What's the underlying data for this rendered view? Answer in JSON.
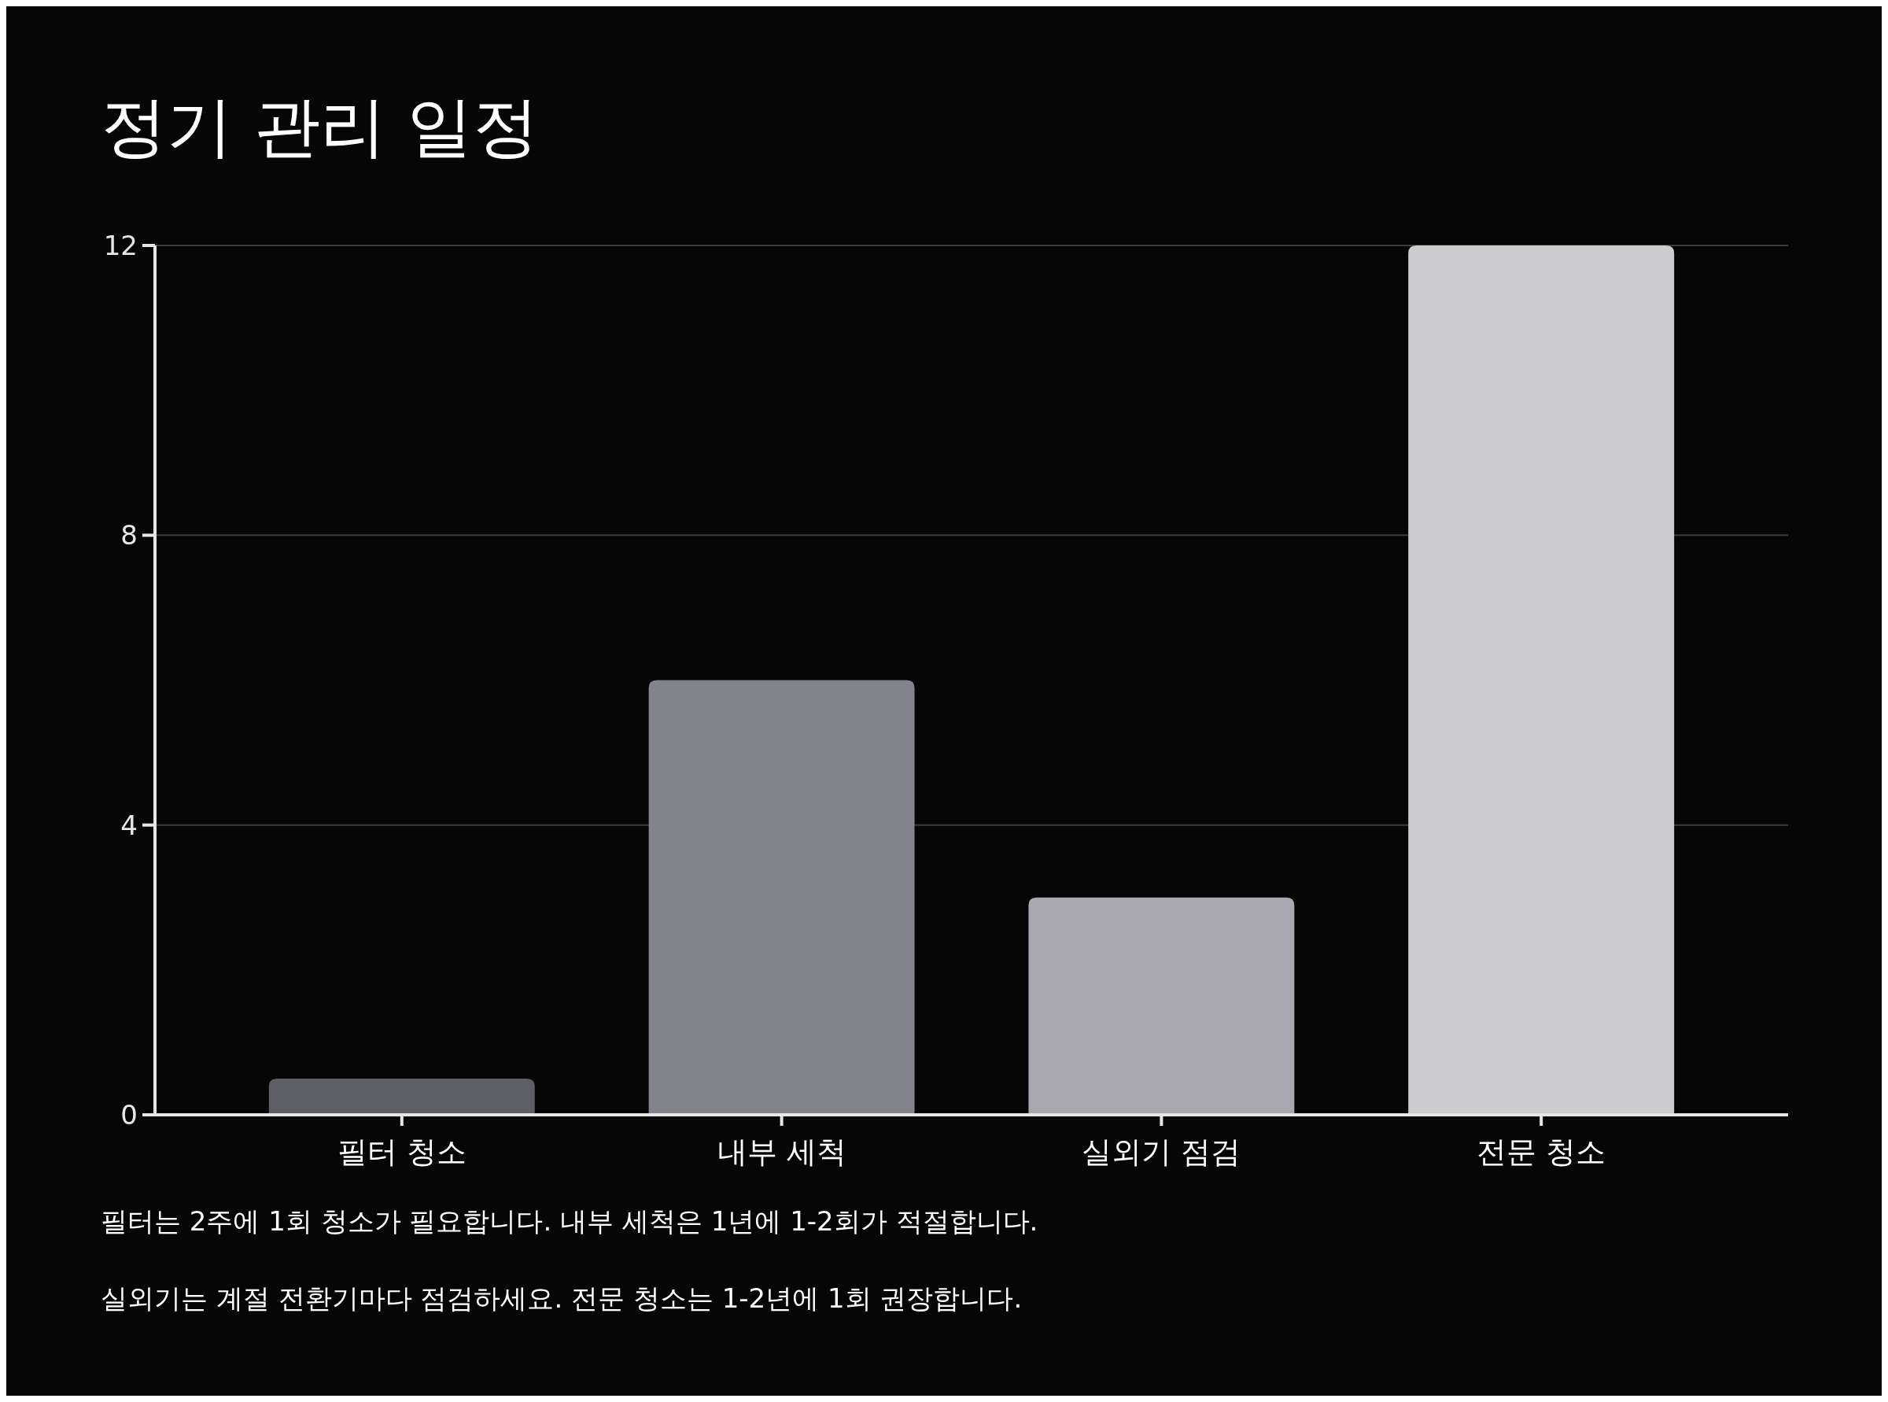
{
  "chart_data": {
    "type": "bar",
    "title": "정기 관리 일정",
    "categories": [
      "필터 청소",
      "내부 세척",
      "실외기 점검",
      "전문 청소"
    ],
    "values": [
      0.5,
      6,
      3,
      12
    ],
    "colors": [
      "#5e5e66",
      "#83838e",
      "#a9a8b2",
      "#cdcdcf"
    ],
    "ylim": [
      0,
      12
    ],
    "yticks": [
      0,
      4,
      8,
      12
    ],
    "grid": "y",
    "annotations": [
      "필터는 2주에 1회 청소가 필요합니다. 내부 세척은 1년에 1-2회가 적절합니다.",
      "실외기는 계절 전환기마다 점검하세요. 전문 청소는 1-2년에 1회 권장합니다."
    ]
  }
}
